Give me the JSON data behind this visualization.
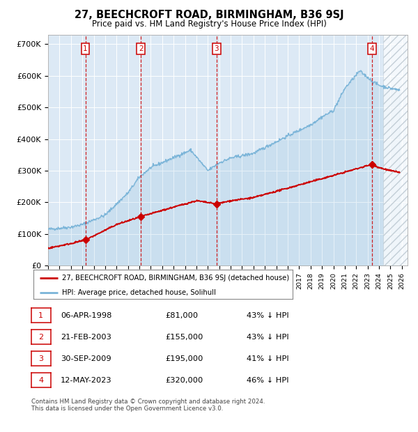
{
  "title": "27, BEECHCROFT ROAD, BIRMINGHAM, B36 9SJ",
  "subtitle": "Price paid vs. HM Land Registry's House Price Index (HPI)",
  "xlim_start": 1995.0,
  "xlim_end": 2026.5,
  "ylim": [
    0,
    730000
  ],
  "yticks": [
    0,
    100000,
    200000,
    300000,
    400000,
    500000,
    600000,
    700000
  ],
  "ytick_labels": [
    "£0",
    "£100K",
    "£200K",
    "£300K",
    "£400K",
    "£500K",
    "£600K",
    "£700K"
  ],
  "bg_color": "#dce9f5",
  "hpi_color": "#7ab4d8",
  "price_color": "#cc0000",
  "vline_color": "#cc0000",
  "transactions": [
    {
      "date": 1998.27,
      "price": 81000,
      "label": "1"
    },
    {
      "date": 2003.14,
      "price": 155000,
      "label": "2"
    },
    {
      "date": 2009.75,
      "price": 195000,
      "label": "3"
    },
    {
      "date": 2023.37,
      "price": 320000,
      "label": "4"
    }
  ],
  "legend_entries": [
    "27, BEECHCROFT ROAD, BIRMINGHAM, B36 9SJ (detached house)",
    "HPI: Average price, detached house, Solihull"
  ],
  "table_rows": [
    {
      "num": "1",
      "date": "06-APR-1998",
      "price": "£81,000",
      "hpi": "43% ↓ HPI"
    },
    {
      "num": "2",
      "date": "21-FEB-2003",
      "price": "£155,000",
      "hpi": "43% ↓ HPI"
    },
    {
      "num": "3",
      "date": "30-SEP-2009",
      "price": "£195,000",
      "hpi": "41% ↓ HPI"
    },
    {
      "num": "4",
      "date": "12-MAY-2023",
      "price": "£320,000",
      "hpi": "46% ↓ HPI"
    }
  ],
  "footer": "Contains HM Land Registry data © Crown copyright and database right 2024.\nThis data is licensed under the Open Government Licence v3.0.",
  "hatch_start": 2024.37
}
